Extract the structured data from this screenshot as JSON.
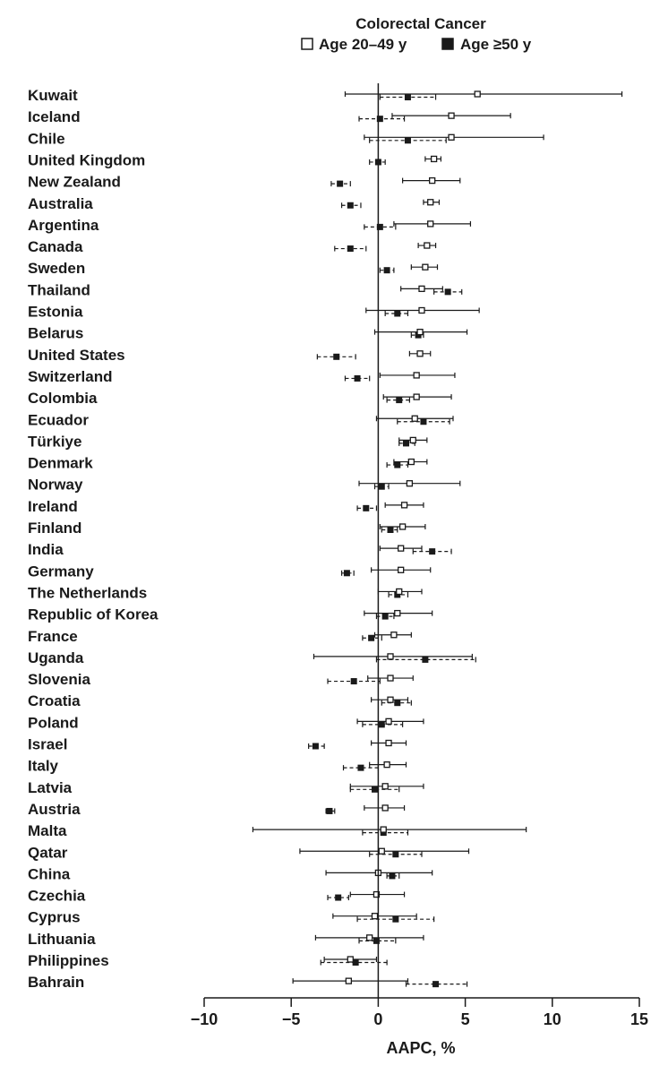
{
  "chart_data": {
    "type": "forest",
    "title": "Colorectal Cancer",
    "xlabel": "AAPC, %",
    "xlim": [
      -10,
      15
    ],
    "xticks": [
      -10,
      -5,
      0,
      5,
      10,
      15
    ],
    "xtick_labels": [
      "−10",
      "−5",
      "0",
      "5",
      "10",
      "15"
    ],
    "reference_line": 0,
    "series": [
      {
        "name": "Age 20–49 y",
        "marker": "open-square",
        "ci_line": "solid"
      },
      {
        "name": "Age ≥50 y",
        "marker": "filled-square",
        "ci_line": "dashed"
      }
    ],
    "countries": [
      {
        "name": "Kuwait",
        "young": [
          5.7,
          -1.9,
          14.0
        ],
        "old": [
          1.7,
          0.1,
          3.3
        ]
      },
      {
        "name": "Iceland",
        "young": [
          4.2,
          0.8,
          7.6
        ],
        "old": [
          0.1,
          -1.1,
          1.5
        ]
      },
      {
        "name": "Chile",
        "young": [
          4.2,
          -0.8,
          9.5
        ],
        "old": [
          1.7,
          -0.5,
          3.9
        ]
      },
      {
        "name": "United Kingdom",
        "young": [
          3.2,
          2.7,
          3.6
        ],
        "old": [
          0.0,
          -0.5,
          0.4
        ]
      },
      {
        "name": "New Zealand",
        "young": [
          3.1,
          1.4,
          4.7
        ],
        "old": [
          -2.2,
          -2.7,
          -1.6
        ]
      },
      {
        "name": "Australia",
        "young": [
          3.0,
          2.6,
          3.5
        ],
        "old": [
          -1.6,
          -2.1,
          -1.0
        ]
      },
      {
        "name": "Argentina",
        "young": [
          3.0,
          0.9,
          5.3
        ],
        "old": [
          0.1,
          -0.8,
          1.0
        ]
      },
      {
        "name": "Canada",
        "young": [
          2.8,
          2.3,
          3.3
        ],
        "old": [
          -1.6,
          -2.5,
          -0.7
        ]
      },
      {
        "name": "Sweden",
        "young": [
          2.7,
          1.9,
          3.4
        ],
        "old": [
          0.5,
          0.1,
          0.9
        ]
      },
      {
        "name": "Thailand",
        "young": [
          2.5,
          1.3,
          3.7
        ],
        "old": [
          4.0,
          3.2,
          4.8
        ]
      },
      {
        "name": "Estonia",
        "young": [
          2.5,
          -0.7,
          5.8
        ],
        "old": [
          1.1,
          0.4,
          1.7
        ]
      },
      {
        "name": "Belarus",
        "young": [
          2.4,
          -0.2,
          5.1
        ],
        "old": [
          2.3,
          1.9,
          2.6
        ]
      },
      {
        "name": "United States",
        "young": [
          2.4,
          1.8,
          3.0
        ],
        "old": [
          -2.4,
          -3.5,
          -1.3
        ]
      },
      {
        "name": "Switzerland",
        "young": [
          2.2,
          0.1,
          4.4
        ],
        "old": [
          -1.2,
          -1.9,
          -0.5
        ]
      },
      {
        "name": "Colombia",
        "young": [
          2.2,
          0.3,
          4.2
        ],
        "old": [
          1.2,
          0.5,
          1.8
        ]
      },
      {
        "name": "Ecuador",
        "young": [
          2.1,
          -0.1,
          4.3
        ],
        "old": [
          2.6,
          1.1,
          4.1
        ]
      },
      {
        "name": "Türkiye",
        "young": [
          2.0,
          1.2,
          2.8
        ],
        "old": [
          1.6,
          1.2,
          2.1
        ]
      },
      {
        "name": "Denmark",
        "young": [
          1.9,
          0.9,
          2.8
        ],
        "old": [
          1.1,
          0.5,
          1.7
        ]
      },
      {
        "name": "Norway",
        "young": [
          1.8,
          -1.1,
          4.7
        ],
        "old": [
          0.2,
          -0.2,
          0.6
        ]
      },
      {
        "name": "Ireland",
        "young": [
          1.5,
          0.4,
          2.6
        ],
        "old": [
          -0.7,
          -1.2,
          -0.1
        ]
      },
      {
        "name": "Finland",
        "young": [
          1.4,
          0.1,
          2.7
        ],
        "old": [
          0.7,
          0.2,
          1.1
        ]
      },
      {
        "name": "India",
        "young": [
          1.3,
          0.1,
          2.5
        ],
        "old": [
          3.1,
          2.0,
          4.2
        ]
      },
      {
        "name": "Germany",
        "young": [
          1.3,
          -0.4,
          3.0
        ],
        "old": [
          -1.8,
          -2.1,
          -1.4
        ]
      },
      {
        "name": "The Netherlands",
        "young": [
          1.2,
          0.0,
          2.5
        ],
        "old": [
          1.1,
          0.6,
          1.7
        ]
      },
      {
        "name": "Republic of Korea",
        "young": [
          1.1,
          -0.8,
          3.1
        ],
        "old": [
          0.4,
          -0.1,
          0.9
        ]
      },
      {
        "name": "France",
        "young": [
          0.9,
          -0.2,
          1.9
        ],
        "old": [
          -0.4,
          -0.9,
          0.2
        ]
      },
      {
        "name": "Uganda",
        "young": [
          0.7,
          -3.7,
          5.4
        ],
        "old": [
          2.7,
          -0.1,
          5.6
        ]
      },
      {
        "name": "Slovenia",
        "young": [
          0.7,
          -0.6,
          2.0
        ],
        "old": [
          -1.4,
          -2.9,
          0.1
        ]
      },
      {
        "name": "Croatia",
        "young": [
          0.7,
          -0.4,
          1.7
        ],
        "old": [
          1.1,
          0.2,
          1.9
        ]
      },
      {
        "name": "Poland",
        "young": [
          0.6,
          -1.2,
          2.6
        ],
        "old": [
          0.2,
          -0.9,
          1.4
        ]
      },
      {
        "name": "Israel",
        "young": [
          0.6,
          -0.4,
          1.6
        ],
        "old": [
          -3.6,
          -4.0,
          -3.1
        ]
      },
      {
        "name": "Italy",
        "young": [
          0.5,
          -0.5,
          1.6
        ],
        "old": [
          -1.0,
          -2.0,
          0.0
        ]
      },
      {
        "name": "Latvia",
        "young": [
          0.4,
          -1.6,
          2.6
        ],
        "old": [
          -0.2,
          -1.6,
          1.2
        ]
      },
      {
        "name": "Austria",
        "young": [
          0.4,
          -0.8,
          1.5
        ],
        "old": [
          -2.8,
          -3.0,
          -2.5
        ]
      },
      {
        "name": "Malta",
        "young": [
          0.3,
          -7.2,
          8.5
        ],
        "old": [
          0.3,
          -0.9,
          1.7
        ]
      },
      {
        "name": "Qatar",
        "young": [
          0.2,
          -4.5,
          5.2
        ],
        "old": [
          1.0,
          -0.5,
          2.5
        ]
      },
      {
        "name": "China",
        "young": [
          0.0,
          -3.0,
          3.1
        ],
        "old": [
          0.8,
          0.5,
          1.2
        ]
      },
      {
        "name": "Czechia",
        "young": [
          -0.1,
          -1.6,
          1.5
        ],
        "old": [
          -2.3,
          -2.9,
          -1.7
        ]
      },
      {
        "name": "Cyprus",
        "young": [
          -0.2,
          -2.6,
          2.2
        ],
        "old": [
          1.0,
          -1.2,
          3.2
        ]
      },
      {
        "name": "Lithuania",
        "young": [
          -0.5,
          -3.6,
          2.6
        ],
        "old": [
          -0.1,
          -1.1,
          1.0
        ]
      },
      {
        "name": "Philippines",
        "young": [
          -1.6,
          -3.1,
          -0.1
        ],
        "old": [
          -1.3,
          -3.3,
          0.5
        ]
      },
      {
        "name": "Bahrain",
        "young": [
          -1.7,
          -4.9,
          1.7
        ],
        "old": [
          3.3,
          1.6,
          5.1
        ]
      }
    ]
  }
}
